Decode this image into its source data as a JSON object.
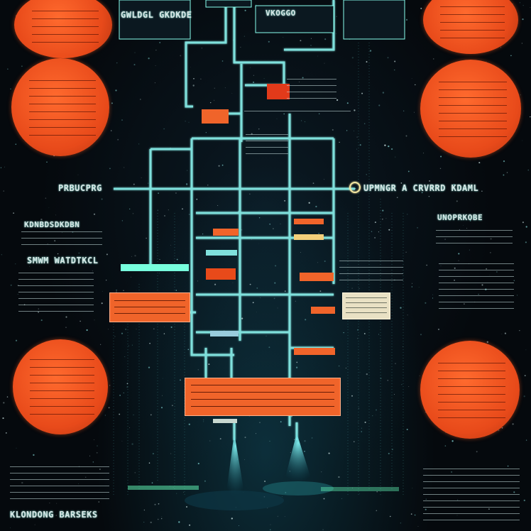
{
  "labels": {
    "top_left_header": "GWLDGL GKDKDE",
    "top_right_header": "VKOGGO",
    "mid_left_banner": "PRBUCPRG",
    "mid_right_banner": "UPMNGR A CRVRRD KDAML",
    "left_heading_1": "KDNBDSDKDBN",
    "left_heading_2": "SMWM WATDTKCL",
    "right_heading_1": "UNOPRKOBE",
    "bottom_left_footer": "KLONDONG BARSEKS"
  },
  "colors": {
    "background": "#05090d",
    "pipe": "#7fe0dc",
    "orange": "#f0642a",
    "cream": "#e9e1c4",
    "text": "#d9e6e6"
  }
}
